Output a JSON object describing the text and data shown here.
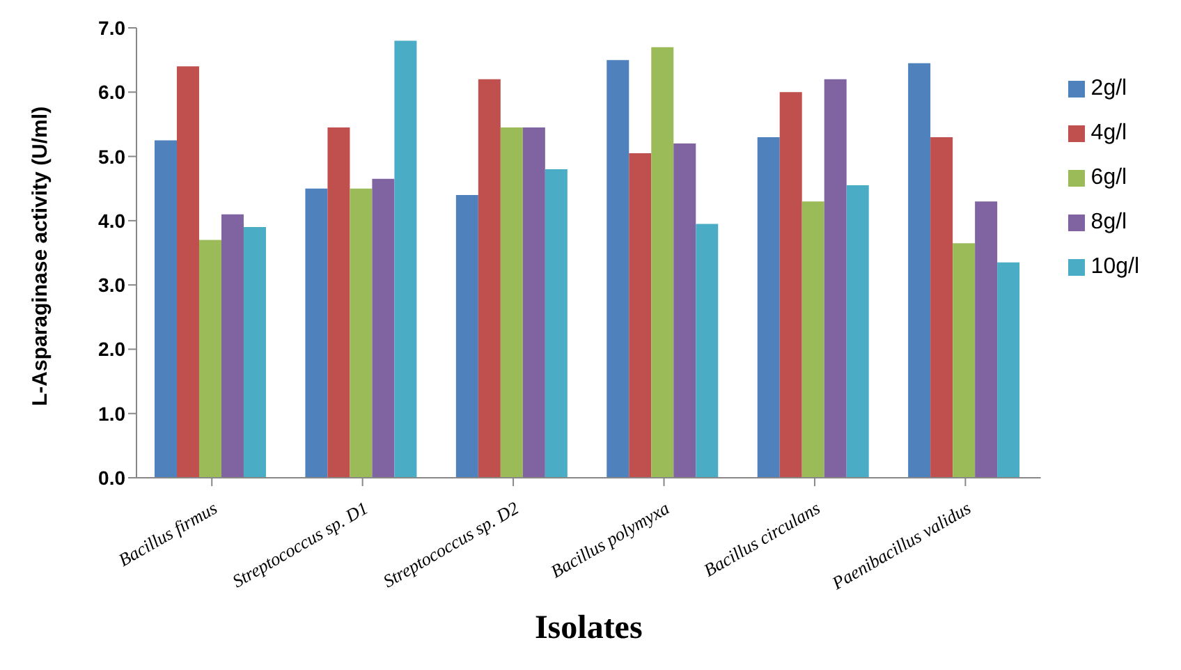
{
  "chart_data": {
    "type": "bar",
    "xlabel": "Isolates",
    "ylabel": "L-Asparaginase activity (U/ml)",
    "categories": [
      "Bacillus firmus",
      "Streptococcus sp. D1",
      "Streptococcus sp. D2",
      "Bacillus polymyxa",
      "Bacillus circulans",
      "Paenibacillus validus"
    ],
    "series": [
      {
        "name": "2g/l",
        "color": "#4f81bd",
        "values": [
          5.25,
          4.5,
          4.4,
          6.5,
          5.3,
          6.45
        ]
      },
      {
        "name": "4g/l",
        "color": "#c0504d",
        "values": [
          6.4,
          5.45,
          6.2,
          5.05,
          6.0,
          5.3
        ]
      },
      {
        "name": "6g/l",
        "color": "#9bbb59",
        "values": [
          3.7,
          4.5,
          5.45,
          6.7,
          4.3,
          3.65
        ]
      },
      {
        "name": "8g/l",
        "color": "#8064a2",
        "values": [
          4.1,
          4.65,
          5.45,
          5.2,
          6.2,
          4.3
        ]
      },
      {
        "name": "10g/l",
        "color": "#4bacc6",
        "values": [
          3.9,
          6.8,
          4.8,
          3.95,
          4.55,
          3.35
        ]
      }
    ],
    "ylim": [
      0,
      7
    ],
    "yticks": [
      {
        "value": 0,
        "label": "0.0"
      },
      {
        "value": 1,
        "label": "1.0"
      },
      {
        "value": 2,
        "label": "2.0"
      },
      {
        "value": 3,
        "label": "3.0"
      },
      {
        "value": 4,
        "label": "4.0"
      },
      {
        "value": 5,
        "label": "5.0"
      },
      {
        "value": 6,
        "label": "6.0"
      },
      {
        "value": 7,
        "label": "7.0"
      }
    ],
    "grid": false,
    "legend": "right"
  }
}
